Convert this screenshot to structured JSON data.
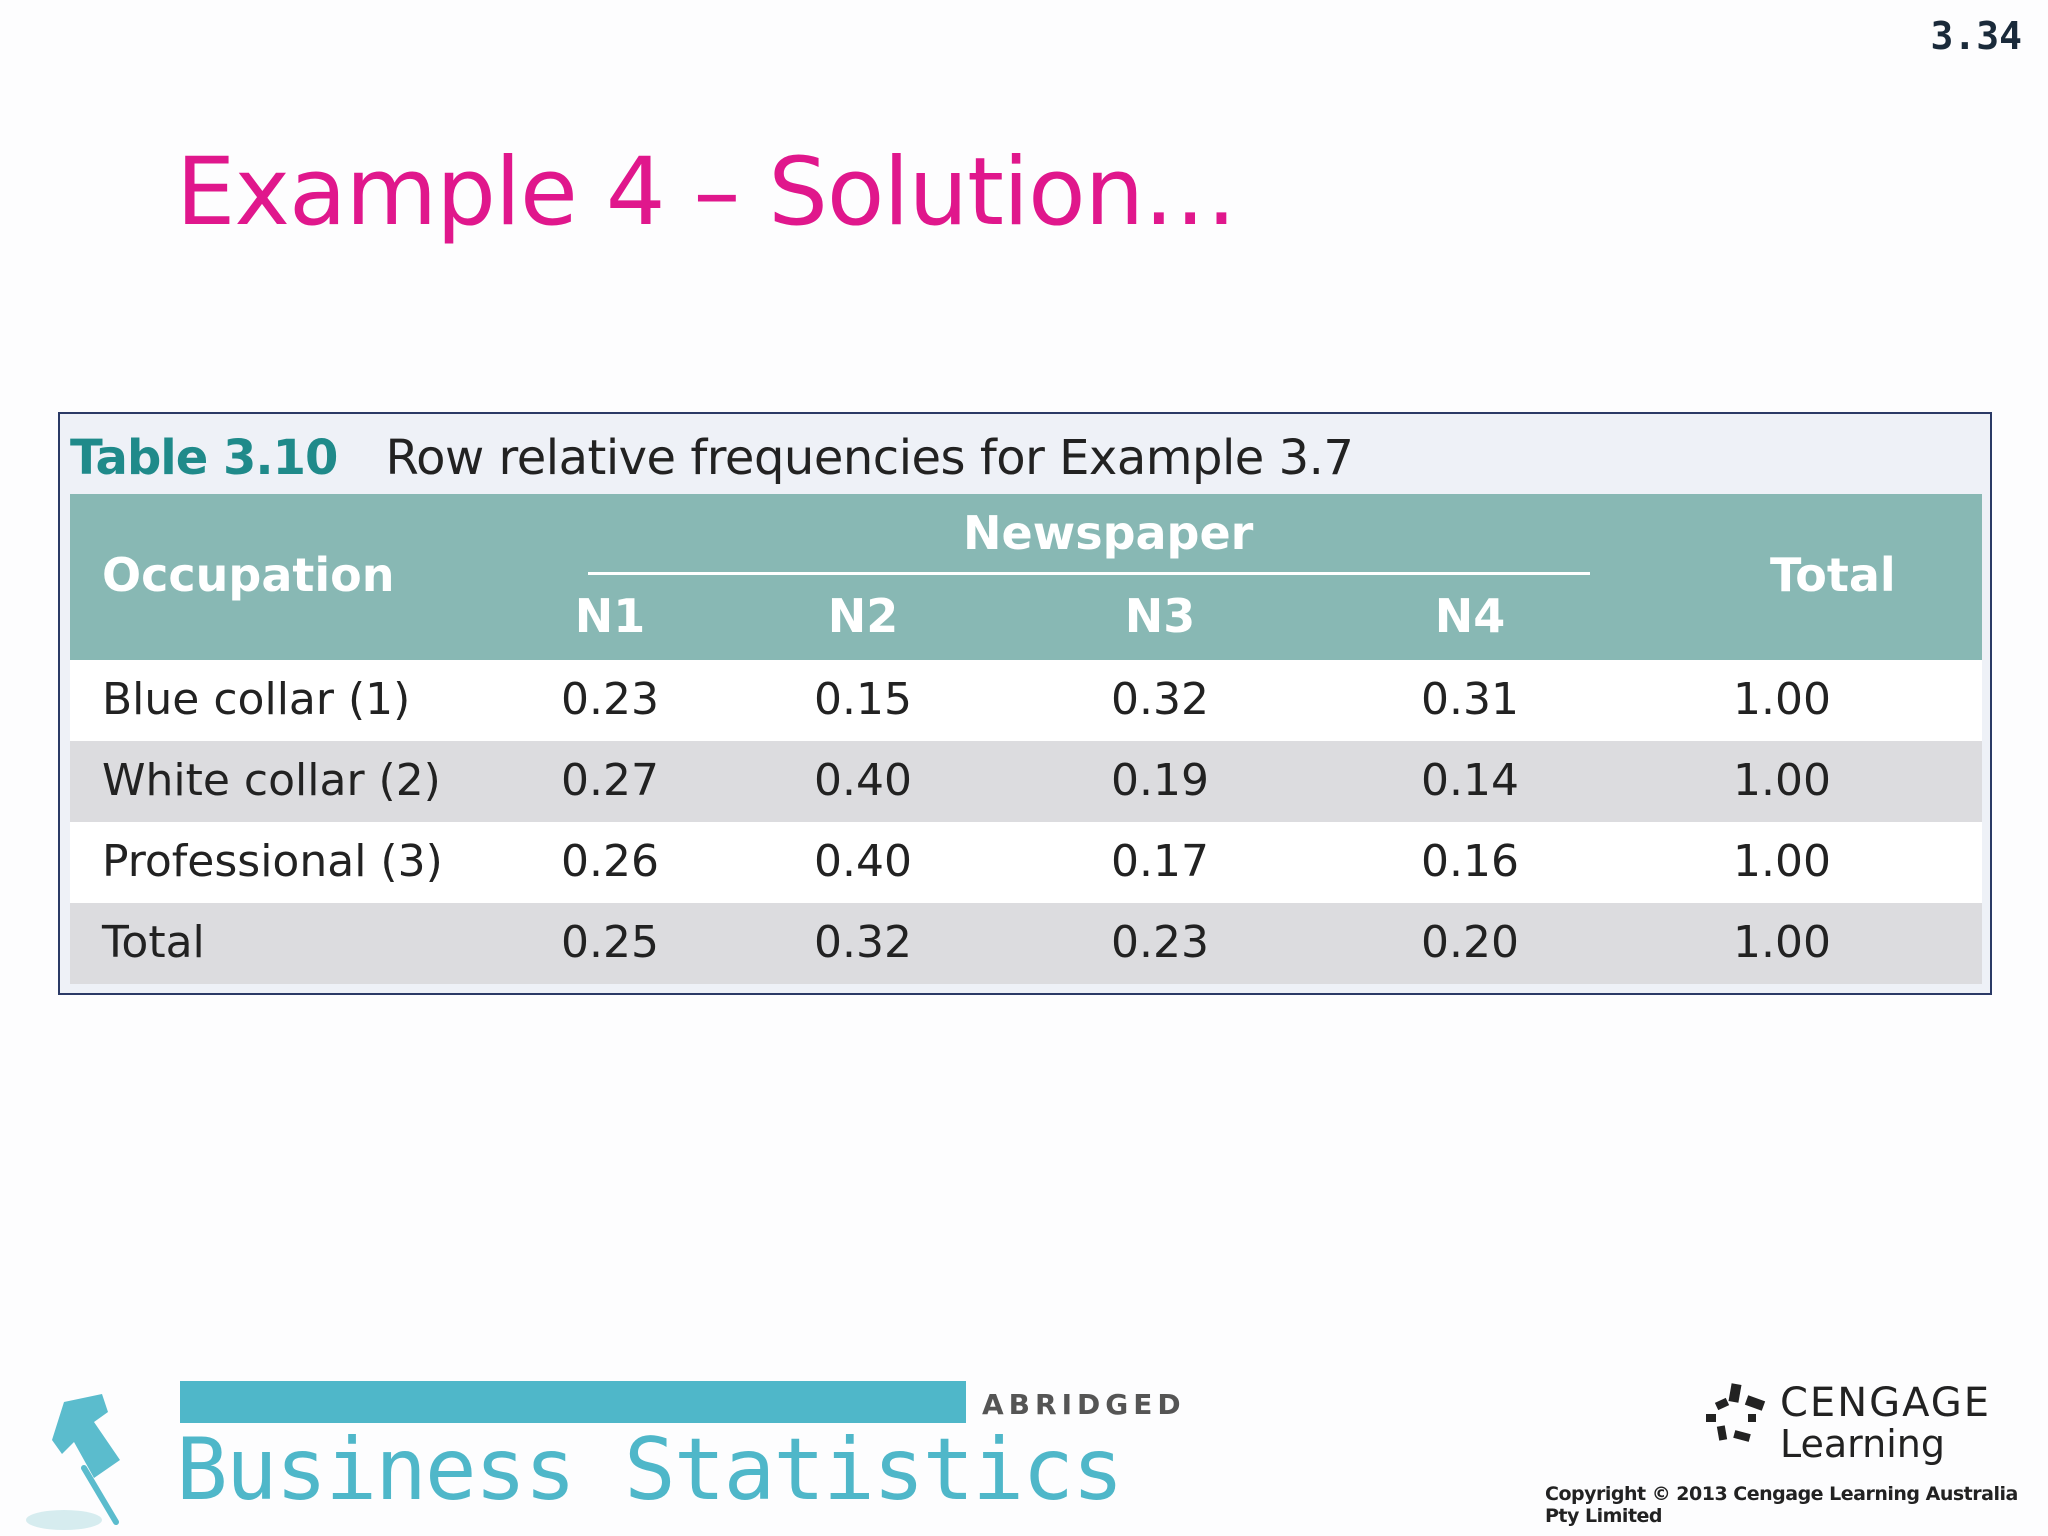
{
  "slide_number": "3.34",
  "title": "Example 4 – Solution…",
  "table": {
    "label": "Table 3.10",
    "caption": "Row relative frequencies for Example 3.7",
    "header": {
      "occupation": "Occupation",
      "newspaper": "Newspaper",
      "columns": [
        "N1",
        "N2",
        "N3",
        "N4"
      ],
      "total": "Total"
    },
    "rows": [
      {
        "label": "Blue collar (1)",
        "values": [
          "0.23",
          "0.15",
          "0.32",
          "0.31"
        ],
        "total": "1.00"
      },
      {
        "label": "White collar (2)",
        "values": [
          "0.27",
          "0.40",
          "0.19",
          "0.14"
        ],
        "total": "1.00"
      },
      {
        "label": "Professional (3)",
        "values": [
          "0.26",
          "0.40",
          "0.17",
          "0.16"
        ],
        "total": "1.00"
      },
      {
        "label": "Total",
        "values": [
          "0.25",
          "0.32",
          "0.23",
          "0.20"
        ],
        "total": "1.00"
      }
    ]
  },
  "footer": {
    "book_edition": "ABRIDGED",
    "book_title": "Business Statistics",
    "publisher_name": "CENGAGE",
    "publisher_sub": "Learning",
    "copyright": "Copyright © 2013 Cengage Learning Australia Pty Limited"
  },
  "colors": {
    "title": "#e0178c",
    "header_bg": "#88b8b4",
    "caption_label": "#1f8a8a",
    "brand_teal": "#4fb7c9"
  }
}
